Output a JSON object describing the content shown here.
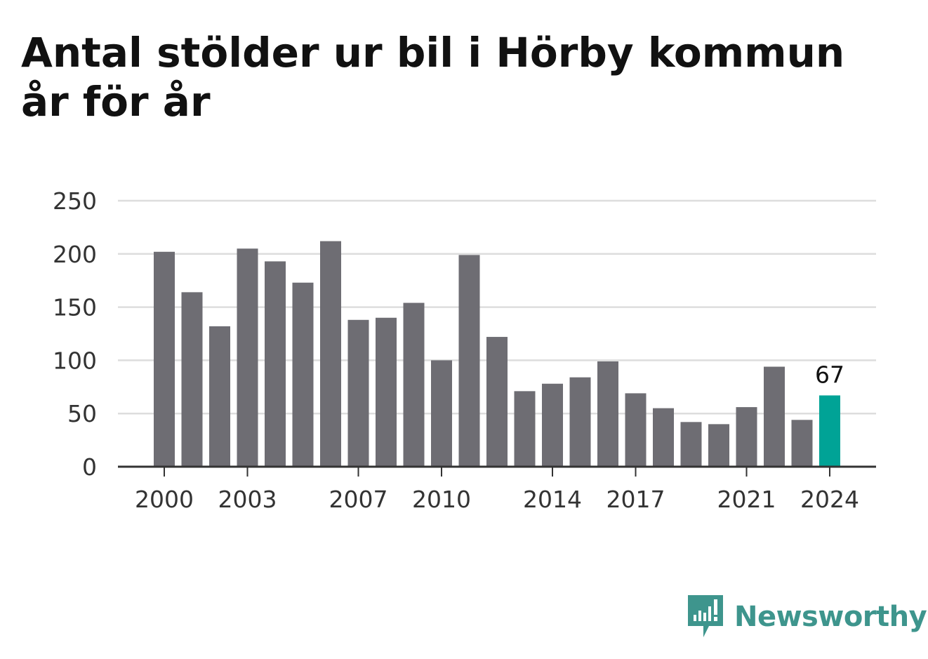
{
  "title": "Antal stölder ur bil i Hörby kommun år för år",
  "brand": {
    "name": "Newsworthy",
    "color": "#3e958d"
  },
  "colors": {
    "bar": "#6e6d73",
    "highlight": "#00a396",
    "grid": "#dddddd",
    "axis": "#333333"
  },
  "chart_data": {
    "type": "bar",
    "title": "Antal stölder ur bil i Hörby kommun år för år",
    "xlabel": "",
    "ylabel": "",
    "ylim": [
      0,
      250
    ],
    "yticks": [
      0,
      50,
      100,
      150,
      200,
      250
    ],
    "grid": true,
    "categories": [
      "2000",
      "2001",
      "2002",
      "2003",
      "2004",
      "2005",
      "2006",
      "2007",
      "2008",
      "2009",
      "2010",
      "2011",
      "2012",
      "2013",
      "2014",
      "2015",
      "2016",
      "2017",
      "2018",
      "2019",
      "2020",
      "2021",
      "2022",
      "2023",
      "2024"
    ],
    "xtick_labels": [
      "2000",
      "2003",
      "2007",
      "2010",
      "2014",
      "2017",
      "2021",
      "2024"
    ],
    "values": [
      202,
      164,
      132,
      205,
      193,
      173,
      212,
      138,
      140,
      154,
      100,
      199,
      122,
      71,
      78,
      84,
      99,
      69,
      55,
      42,
      40,
      56,
      94,
      44,
      67
    ],
    "highlight": {
      "category": "2024",
      "label": "67"
    }
  }
}
